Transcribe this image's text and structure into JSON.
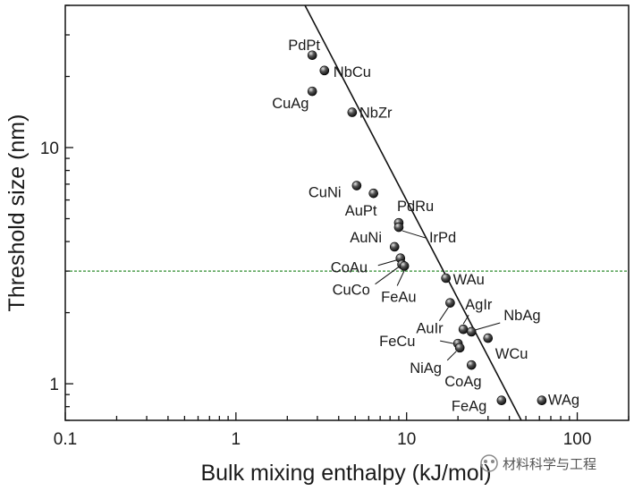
{
  "chart_data": {
    "type": "scatter",
    "xlabel": "Bulk mixing enthalpy (kJ/mol)",
    "ylabel": "Threshold size (nm)",
    "x_scale": "log",
    "y_scale": "log",
    "xlim": [
      0.1,
      200
    ],
    "ylim": [
      0.7,
      40
    ],
    "x_ticks": [
      {
        "value": 0.1,
        "label": "0.1"
      },
      {
        "value": 1,
        "label": "1"
      },
      {
        "value": 10,
        "label": "10"
      },
      {
        "value": 100,
        "label": "100"
      }
    ],
    "y_ticks": [
      {
        "value": 1,
        "label": "1"
      },
      {
        "value": 10,
        "label": "10"
      }
    ],
    "grid": false,
    "points": [
      {
        "label": "PdPt",
        "x": 2.8,
        "y": 24.6
      },
      {
        "label": "NbCu",
        "x": 3.3,
        "y": 21.2
      },
      {
        "label": "CuAg",
        "x": 2.8,
        "y": 17.3
      },
      {
        "label": "NbZr",
        "x": 4.8,
        "y": 14.1
      },
      {
        "label": "CuNi",
        "x": 5.1,
        "y": 6.9
      },
      {
        "label": "AuPt",
        "x": 6.4,
        "y": 6.4
      },
      {
        "label": "PdRu",
        "x": 9.0,
        "y": 4.8
      },
      {
        "label": "IrPd",
        "x": 9.0,
        "y": 4.6
      },
      {
        "label": "AuNi",
        "x": 8.5,
        "y": 3.8
      },
      {
        "label": "CoAu",
        "x": 9.2,
        "y": 3.4
      },
      {
        "label": "CuCo",
        "x": 9.4,
        "y": 3.2
      },
      {
        "label": "FeAu",
        "x": 9.7,
        "y": 3.15
      },
      {
        "label": "WAu",
        "x": 17.0,
        "y": 2.8
      },
      {
        "label": "AuIr",
        "x": 18.0,
        "y": 2.2
      },
      {
        "label": "AgIr",
        "x": 21.5,
        "y": 1.7
      },
      {
        "label": "NbAg",
        "x": 24.0,
        "y": 1.66
      },
      {
        "label": "WCu",
        "x": 30.0,
        "y": 1.56
      },
      {
        "label": "FeCu",
        "x": 20.0,
        "y": 1.48
      },
      {
        "label": "NiAg",
        "x": 20.5,
        "y": 1.42
      },
      {
        "label": "CoAg",
        "x": 24.0,
        "y": 1.2
      },
      {
        "label": "FeAg",
        "x": 36.0,
        "y": 0.85
      },
      {
        "label": "WAg",
        "x": 62.0,
        "y": 0.85
      }
    ],
    "fit_line": {
      "x": [
        2.45,
        47.0
      ],
      "y": [
        42.0,
        0.7
      ]
    },
    "reference_line": {
      "y": 3.0,
      "color": "#2e8b2e",
      "style": "dashed"
    },
    "colors": {
      "marker": "#222222",
      "fit": "#111111",
      "reference": "#2e8b2e"
    }
  },
  "watermark": {
    "text": "材料科学与工程"
  }
}
